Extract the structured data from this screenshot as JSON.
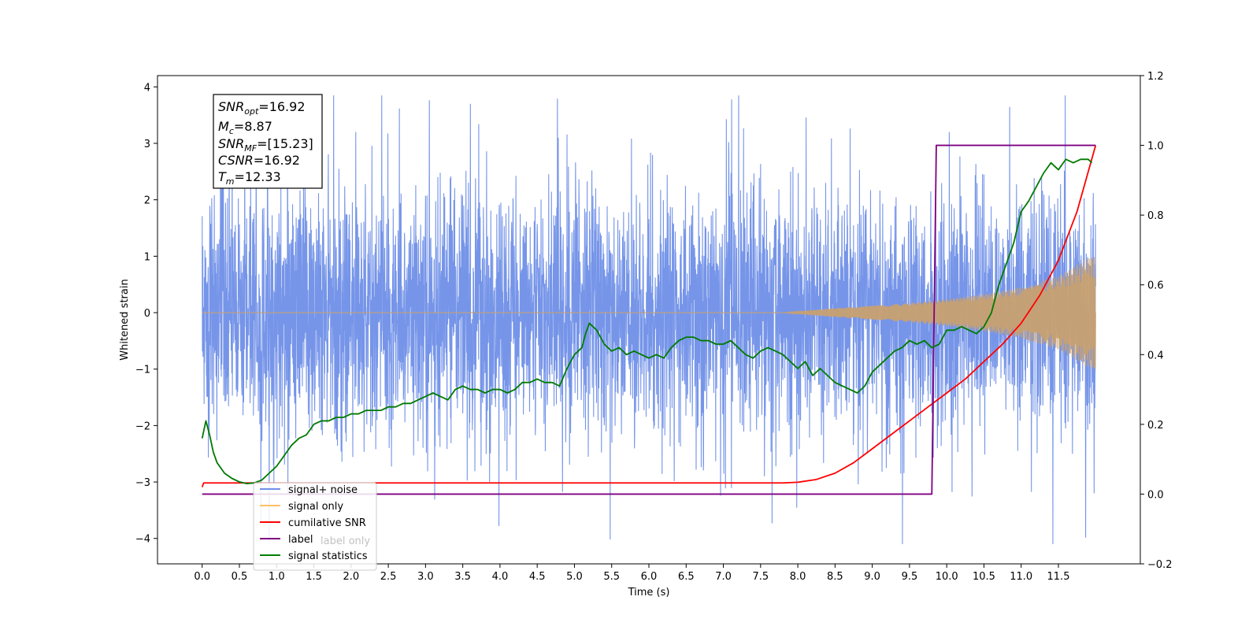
{
  "chart_data": {
    "type": "line",
    "xlabel": "Time (s)",
    "ylabel": "Whitened strain",
    "xlim": [
      -0.6,
      12.6
    ],
    "ylim": [
      -4.45,
      4.2
    ],
    "y2lim": [
      -0.2,
      1.2
    ],
    "x_ticks": [
      "0.0",
      "0.5",
      "1.0",
      "1.5",
      "2.0",
      "2.5",
      "3.0",
      "3.5",
      "4.0",
      "4.5",
      "5.0",
      "5.5",
      "6.0",
      "6.5",
      "7.0",
      "7.5",
      "8.0",
      "8.5",
      "9.0",
      "9.5",
      "10.0",
      "10.5",
      "11.0",
      "11.5"
    ],
    "y_ticks": [
      "4",
      "3",
      "2",
      "1",
      "0",
      "−1",
      "−2",
      "−3",
      "−4"
    ],
    "y2_ticks": [
      "1.2",
      "1.0",
      "0.8",
      "0.6",
      "0.4",
      "0.2",
      "0.0",
      "−0.2"
    ],
    "annotation": {
      "lines": [
        {
          "sym": "SNR",
          "sub": "opt",
          "val": "=16.92"
        },
        {
          "sym": "M",
          "sub": "c",
          "val": "=8.87"
        },
        {
          "sym": "SNR",
          "sub": "MF",
          "val": "=[15.23]"
        },
        {
          "sym": "CSNR",
          "sub": "",
          "val": "=16.92"
        },
        {
          "sym": "T",
          "sub": "m",
          "val": "=12.33"
        }
      ]
    },
    "legend": {
      "location": "lower left",
      "entries": [
        {
          "label": "signal+ noise",
          "color": "#6f8fe8"
        },
        {
          "label": "signal only",
          "color": "#ffbf66"
        },
        {
          "label": "cumilative SNR",
          "color": "#ff0000"
        },
        {
          "label": "label",
          "color": "#800080"
        },
        {
          "label": "signal statistics",
          "color": "#008000"
        }
      ],
      "occluded_label": "label only"
    },
    "series": [
      {
        "name": "signal+ noise",
        "axis": "left",
        "color": "#6f8fe8",
        "description": "noisy whitened strain, amplitude roughly within ±3.8",
        "x_range": [
          0,
          12.0
        ]
      },
      {
        "name": "signal only",
        "axis": "left",
        "color": "#c8a070",
        "description": "chirp waveform, zero until ~7.8 s, envelope grows to ±1.05 at 12.0 s",
        "envelope": {
          "x": [
            7.8,
            8.5,
            9.0,
            9.5,
            10.0,
            10.5,
            11.0,
            11.5,
            12.0
          ],
          "amp": [
            0.0,
            0.08,
            0.12,
            0.17,
            0.24,
            0.33,
            0.45,
            0.65,
            1.05
          ]
        }
      },
      {
        "name": "cumilative SNR",
        "axis": "right",
        "color": "#ff0000",
        "x": [
          0.0,
          0.02,
          1.0,
          2.0,
          3.0,
          4.0,
          5.0,
          6.0,
          7.0,
          7.8,
          8.0,
          8.25,
          8.5,
          8.75,
          9.0,
          9.25,
          9.5,
          9.75,
          10.0,
          10.25,
          10.5,
          10.75,
          11.0,
          11.25,
          11.5,
          11.75,
          12.0
        ],
        "y": [
          0.02,
          0.032,
          0.032,
          0.032,
          0.032,
          0.032,
          0.032,
          0.032,
          0.032,
          0.032,
          0.034,
          0.042,
          0.06,
          0.09,
          0.13,
          0.17,
          0.21,
          0.25,
          0.29,
          0.33,
          0.38,
          0.43,
          0.49,
          0.57,
          0.67,
          0.81,
          1.0
        ]
      },
      {
        "name": "label",
        "axis": "right",
        "color": "#800080",
        "x": [
          0.0,
          9.8,
          9.86,
          12.0
        ],
        "y": [
          0.0,
          0.0,
          1.0,
          1.0
        ]
      },
      {
        "name": "signal statistics",
        "axis": "right",
        "color": "#007a00",
        "x": [
          0.0,
          0.05,
          0.1,
          0.15,
          0.2,
          0.3,
          0.4,
          0.5,
          0.6,
          0.7,
          0.8,
          0.9,
          1.0,
          1.1,
          1.2,
          1.3,
          1.4,
          1.5,
          1.6,
          1.7,
          1.8,
          1.9,
          2.0,
          2.1,
          2.2,
          2.3,
          2.4,
          2.5,
          2.6,
          2.7,
          2.8,
          2.9,
          3.0,
          3.1,
          3.2,
          3.3,
          3.4,
          3.5,
          3.6,
          3.7,
          3.8,
          3.9,
          4.0,
          4.1,
          4.2,
          4.3,
          4.4,
          4.5,
          4.6,
          4.7,
          4.8,
          4.9,
          5.0,
          5.1,
          5.15,
          5.2,
          5.3,
          5.4,
          5.5,
          5.6,
          5.7,
          5.8,
          5.9,
          6.0,
          6.1,
          6.2,
          6.3,
          6.4,
          6.5,
          6.6,
          6.7,
          6.8,
          6.9,
          7.0,
          7.1,
          7.2,
          7.3,
          7.4,
          7.5,
          7.6,
          7.7,
          7.8,
          7.9,
          8.0,
          8.1,
          8.2,
          8.3,
          8.4,
          8.5,
          8.6,
          8.7,
          8.8,
          8.9,
          9.0,
          9.1,
          9.2,
          9.3,
          9.4,
          9.5,
          9.6,
          9.7,
          9.8,
          9.9,
          10.0,
          10.1,
          10.2,
          10.3,
          10.4,
          10.5,
          10.6,
          10.7,
          10.8,
          10.9,
          11.0,
          11.1,
          11.2,
          11.3,
          11.4,
          11.5,
          11.6,
          11.7,
          11.8,
          11.9,
          11.95
        ],
        "y": [
          0.16,
          0.21,
          0.17,
          0.12,
          0.09,
          0.06,
          0.045,
          0.035,
          0.03,
          0.032,
          0.04,
          0.06,
          0.08,
          0.11,
          0.14,
          0.16,
          0.17,
          0.2,
          0.21,
          0.21,
          0.22,
          0.22,
          0.23,
          0.23,
          0.24,
          0.24,
          0.24,
          0.25,
          0.25,
          0.26,
          0.26,
          0.27,
          0.28,
          0.29,
          0.28,
          0.27,
          0.3,
          0.31,
          0.3,
          0.3,
          0.29,
          0.3,
          0.3,
          0.29,
          0.3,
          0.32,
          0.32,
          0.33,
          0.32,
          0.32,
          0.31,
          0.36,
          0.4,
          0.42,
          0.46,
          0.49,
          0.47,
          0.43,
          0.41,
          0.42,
          0.4,
          0.41,
          0.4,
          0.39,
          0.4,
          0.39,
          0.42,
          0.44,
          0.45,
          0.45,
          0.44,
          0.44,
          0.43,
          0.43,
          0.44,
          0.42,
          0.4,
          0.39,
          0.41,
          0.42,
          0.41,
          0.4,
          0.38,
          0.36,
          0.38,
          0.34,
          0.36,
          0.34,
          0.32,
          0.31,
          0.3,
          0.29,
          0.31,
          0.35,
          0.37,
          0.39,
          0.41,
          0.42,
          0.44,
          0.43,
          0.44,
          0.42,
          0.43,
          0.47,
          0.47,
          0.48,
          0.47,
          0.46,
          0.48,
          0.52,
          0.6,
          0.66,
          0.72,
          0.81,
          0.84,
          0.88,
          0.92,
          0.95,
          0.93,
          0.96,
          0.95,
          0.96,
          0.96,
          0.95
        ]
      }
    ],
    "grid": false
  }
}
